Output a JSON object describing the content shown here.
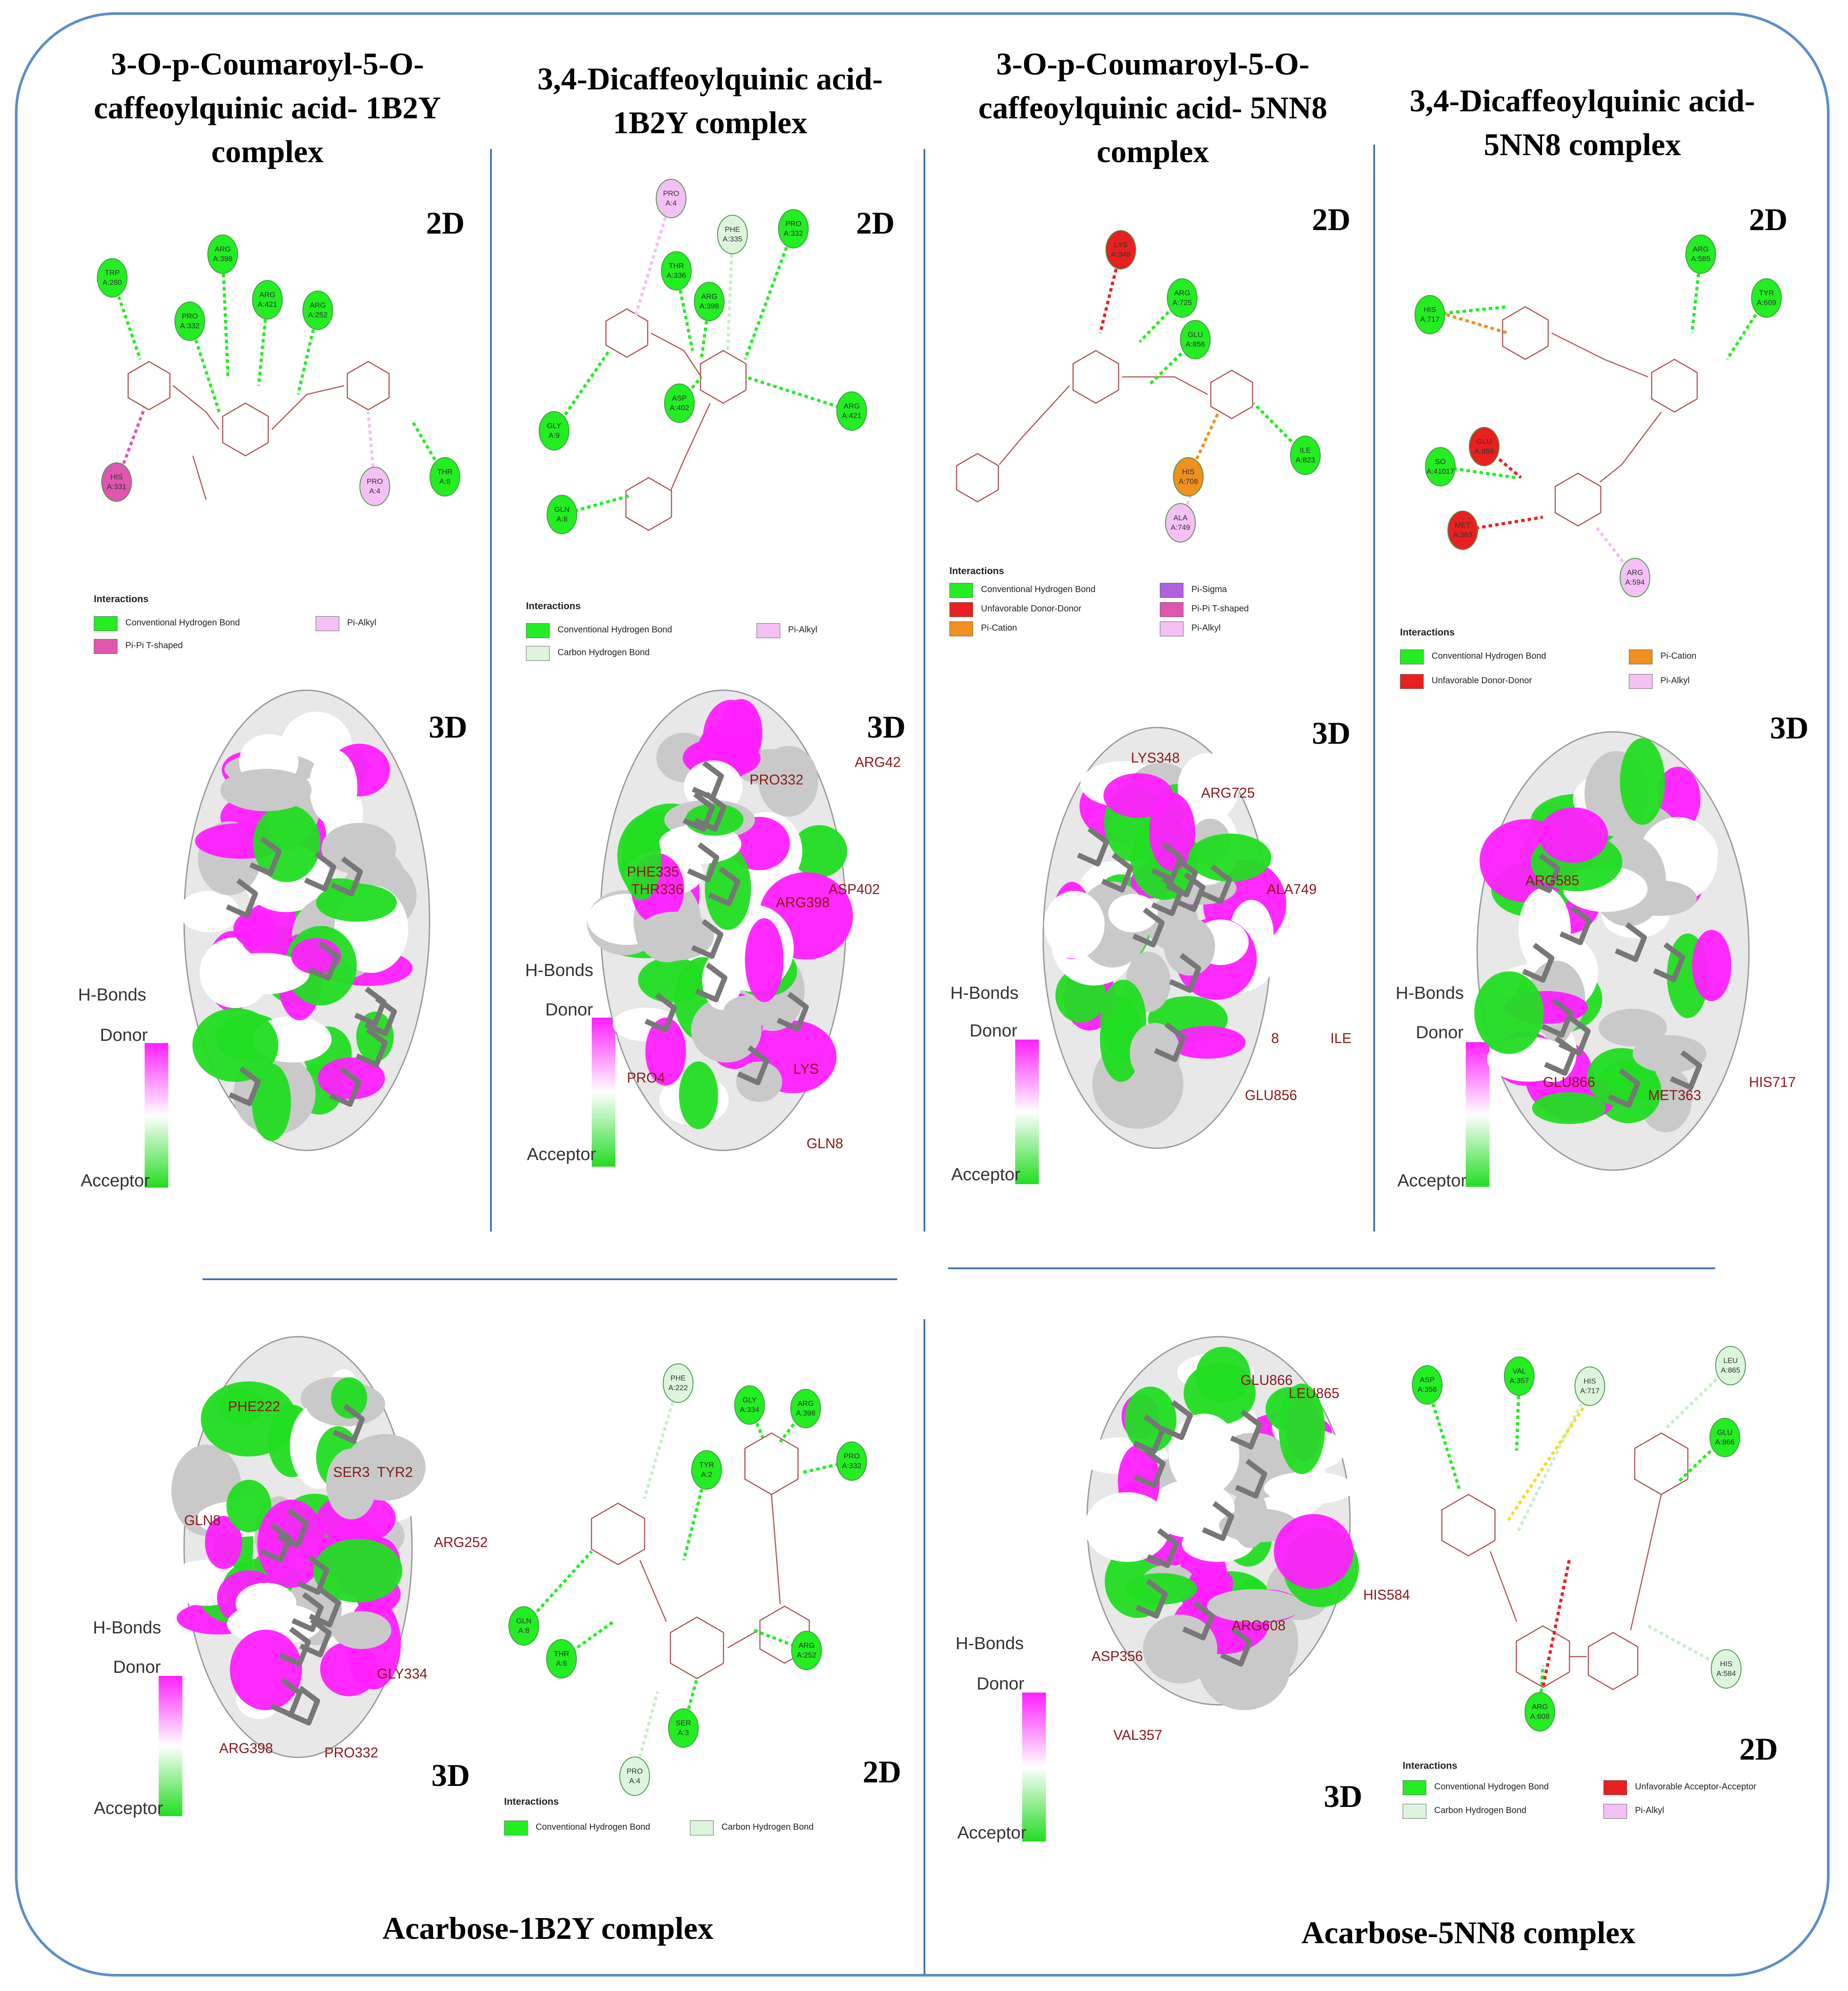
{
  "colors": {
    "hbond": "#22ee22",
    "carbon_hbond": "#dcf5dc",
    "pi_alkyl": "#f5c0f5",
    "pi_pi_t": "#e055b0",
    "unfavorable": "#e82020",
    "pi_cation": "#f09020",
    "pi_sigma": "#b060e0",
    "frame": "#5b8ec9",
    "donor": "#ff1fff",
    "acceptor": "#22dd22",
    "ligand": "#777777",
    "residue_label": "#8b1a1a"
  },
  "hbonds_scale": {
    "title": "H-Bonds",
    "donor": "Donor",
    "acceptor": "Acceptor"
  },
  "legend_title": "Interactions",
  "panels": [
    {
      "title": "3-O-p-Coumaroyl-5-O-caffeoylquinic acid- 1B2Y complex",
      "label_2d": "2D",
      "label_3d": "3D",
      "residues": [
        "TRP A:280",
        "PRO A:332",
        "ARG A:398",
        "ARG A:421",
        "ARG A:252",
        "HIS A:331",
        "PRO A:4",
        "THR A:6"
      ],
      "legend": [
        "Conventional Hydrogen Bond",
        "Pi-Pi T-shaped",
        "Pi-Alkyl"
      ]
    },
    {
      "title": "3,4-Dicaffeoylquinic acid- 1B2Y complex",
      "label_2d": "2D",
      "label_3d": "3D",
      "residues": [
        "PRO A:4",
        "PHE A:335",
        "THR A:336",
        "PRO A:332",
        "ARG A:398",
        "GLY A:9",
        "ASP A:402",
        "ARG A:421",
        "GLN A:8"
      ],
      "legend": [
        "Conventional Hydrogen Bond",
        "Carbon Hydrogen Bond",
        "Pi-Alkyl"
      ],
      "labels_3d": [
        "PRO332",
        "ARG42",
        "PHE335",
        "THR336",
        "ASP402",
        "ARG398",
        "PRO4",
        "LYS",
        "GLN8"
      ]
    },
    {
      "title": "3-O-p-Coumaroyl-5-O-caffeoylquinic acid- 5NN8 complex",
      "label_2d": "2D",
      "label_3d": "3D",
      "residues": [
        "LYS A:348",
        "ARG A:725",
        "GLU A:856",
        "ILE A:823",
        "HIS A:708",
        "ALA A:749"
      ],
      "legend": [
        "Conventional Hydrogen Bond",
        "Unfavorable Donor-Donor",
        "Pi-Cation",
        "Pi-Sigma",
        "Pi-Pi T-shaped",
        "Pi-Alkyl"
      ],
      "labels_3d": [
        "LYS348",
        "ARG725",
        "ALA749",
        "ILE",
        "GLU856",
        "8"
      ]
    },
    {
      "title": "3,4-Dicaffeoylquinic acid- 5NN8 complex",
      "label_2d": "2D",
      "label_3d": "3D",
      "residues": [
        "HIS A:717",
        "ARG A:585",
        "TYR A:609",
        "GLU A:866",
        "SO A:41017",
        "MET A:363",
        "ARG A:594"
      ],
      "legend": [
        "Conventional Hydrogen Bond",
        "Unfavorable Donor-Donor",
        "Pi-Cation",
        "Pi-Alkyl"
      ],
      "labels_3d": [
        "ARG585",
        "GLU866",
        "MET363",
        "HIS717"
      ]
    },
    {
      "title": "Acarbose-1B2Y complex",
      "label_2d": "2D",
      "label_3d": "3D",
      "residues": [
        "PHE A:222",
        "GLY A:334",
        "ARG A:398",
        "TYR A:2",
        "PRO A:332",
        "GLN A:8",
        "THR A:6",
        "ARG A:252",
        "SER A:3",
        "PRO A:4"
      ],
      "legend": [
        "Conventional Hydrogen Bond",
        "Carbon Hydrogen Bond"
      ],
      "labels_3d": [
        "PHE222",
        "SER3",
        "TYR2",
        "GLN8",
        "ARG252",
        "GLY334",
        "ARG398",
        "PRO332"
      ]
    },
    {
      "title": "Acarbose-5NN8 complex",
      "label_2d": "2D",
      "label_3d": "3D",
      "residues": [
        "ASP A:356",
        "VAL A:357",
        "HIS A:717",
        "LEU A:865",
        "GLU A:866",
        "HIS A:584",
        "ARG A:608"
      ],
      "legend": [
        "Conventional Hydrogen Bond",
        "Carbon Hydrogen Bond",
        "Unfavorable Acceptor-Acceptor",
        "Pi-Alkyl"
      ],
      "labels_3d": [
        "GLU866",
        "LEU865",
        "HIS584",
        "ARG608",
        "ASP356",
        "VAL357"
      ]
    }
  ]
}
